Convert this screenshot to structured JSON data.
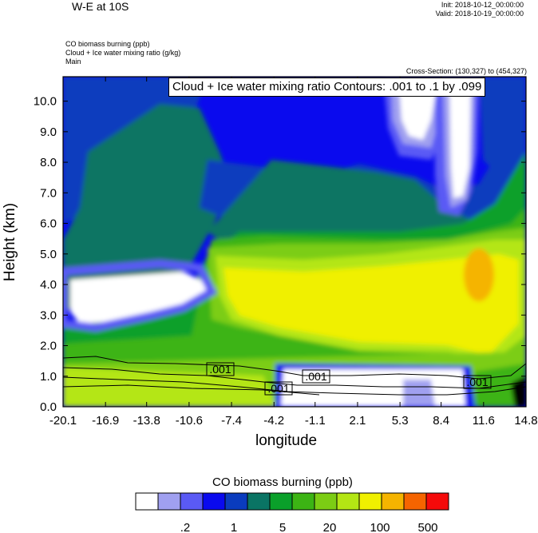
{
  "header": {
    "title": "W-E at 10S",
    "init": "Init: 2018-10-12_00:00:00",
    "valid": "Valid: 2018-10-19_00:00:00",
    "fields": [
      "CO biomass burning   (ppb)",
      "Cloud + Ice water mixing ratio   (g/kg)",
      "Main"
    ],
    "cross_section": "Cross-Section: (130,327) to (454,327)",
    "contour_info": "Cloud + Ice water mixing ratio Contours: .001 to .1 by .099"
  },
  "chart_data": {
    "type": "heatmap",
    "title": "W-E at 10S",
    "xlabel": "longitude",
    "ylabel": "Height (km)",
    "xlim": [
      -20.1,
      14.8
    ],
    "ylim": [
      0,
      10.8
    ],
    "x_ticks": [
      "-20.1",
      "-16.9",
      "-13.8",
      "-10.6",
      "-7.4",
      "-4.2",
      "-1.1",
      "2.1",
      "5.3",
      "8.4",
      "11.6",
      "14.8"
    ],
    "y_ticks": [
      "0.0",
      "1.0",
      "2.0",
      "3.0",
      "4.0",
      "5.0",
      "6.0",
      "7.0",
      "8.0",
      "9.0",
      "10.0"
    ],
    "colorbar": {
      "title": "CO biomass burning  (ppb)",
      "colors": [
        "#ffffff",
        "#a0a0f0",
        "#5a5af5",
        "#0a0aee",
        "#0a3cbe",
        "#0a7464",
        "#0aa02a",
        "#3cb414",
        "#7ccd14",
        "#b4e614",
        "#f0f000",
        "#f5b400",
        "#f56400",
        "#f50a0a"
      ],
      "labels": [
        ".2",
        "1",
        "5",
        "20",
        "100",
        "500"
      ]
    },
    "contours": {
      "variable": "Cloud + Ice water mixing ratio",
      "levels": [
        0.001,
        0.1
      ],
      "labels": [
        ".001",
        ".001",
        ".001",
        ".001"
      ]
    }
  }
}
